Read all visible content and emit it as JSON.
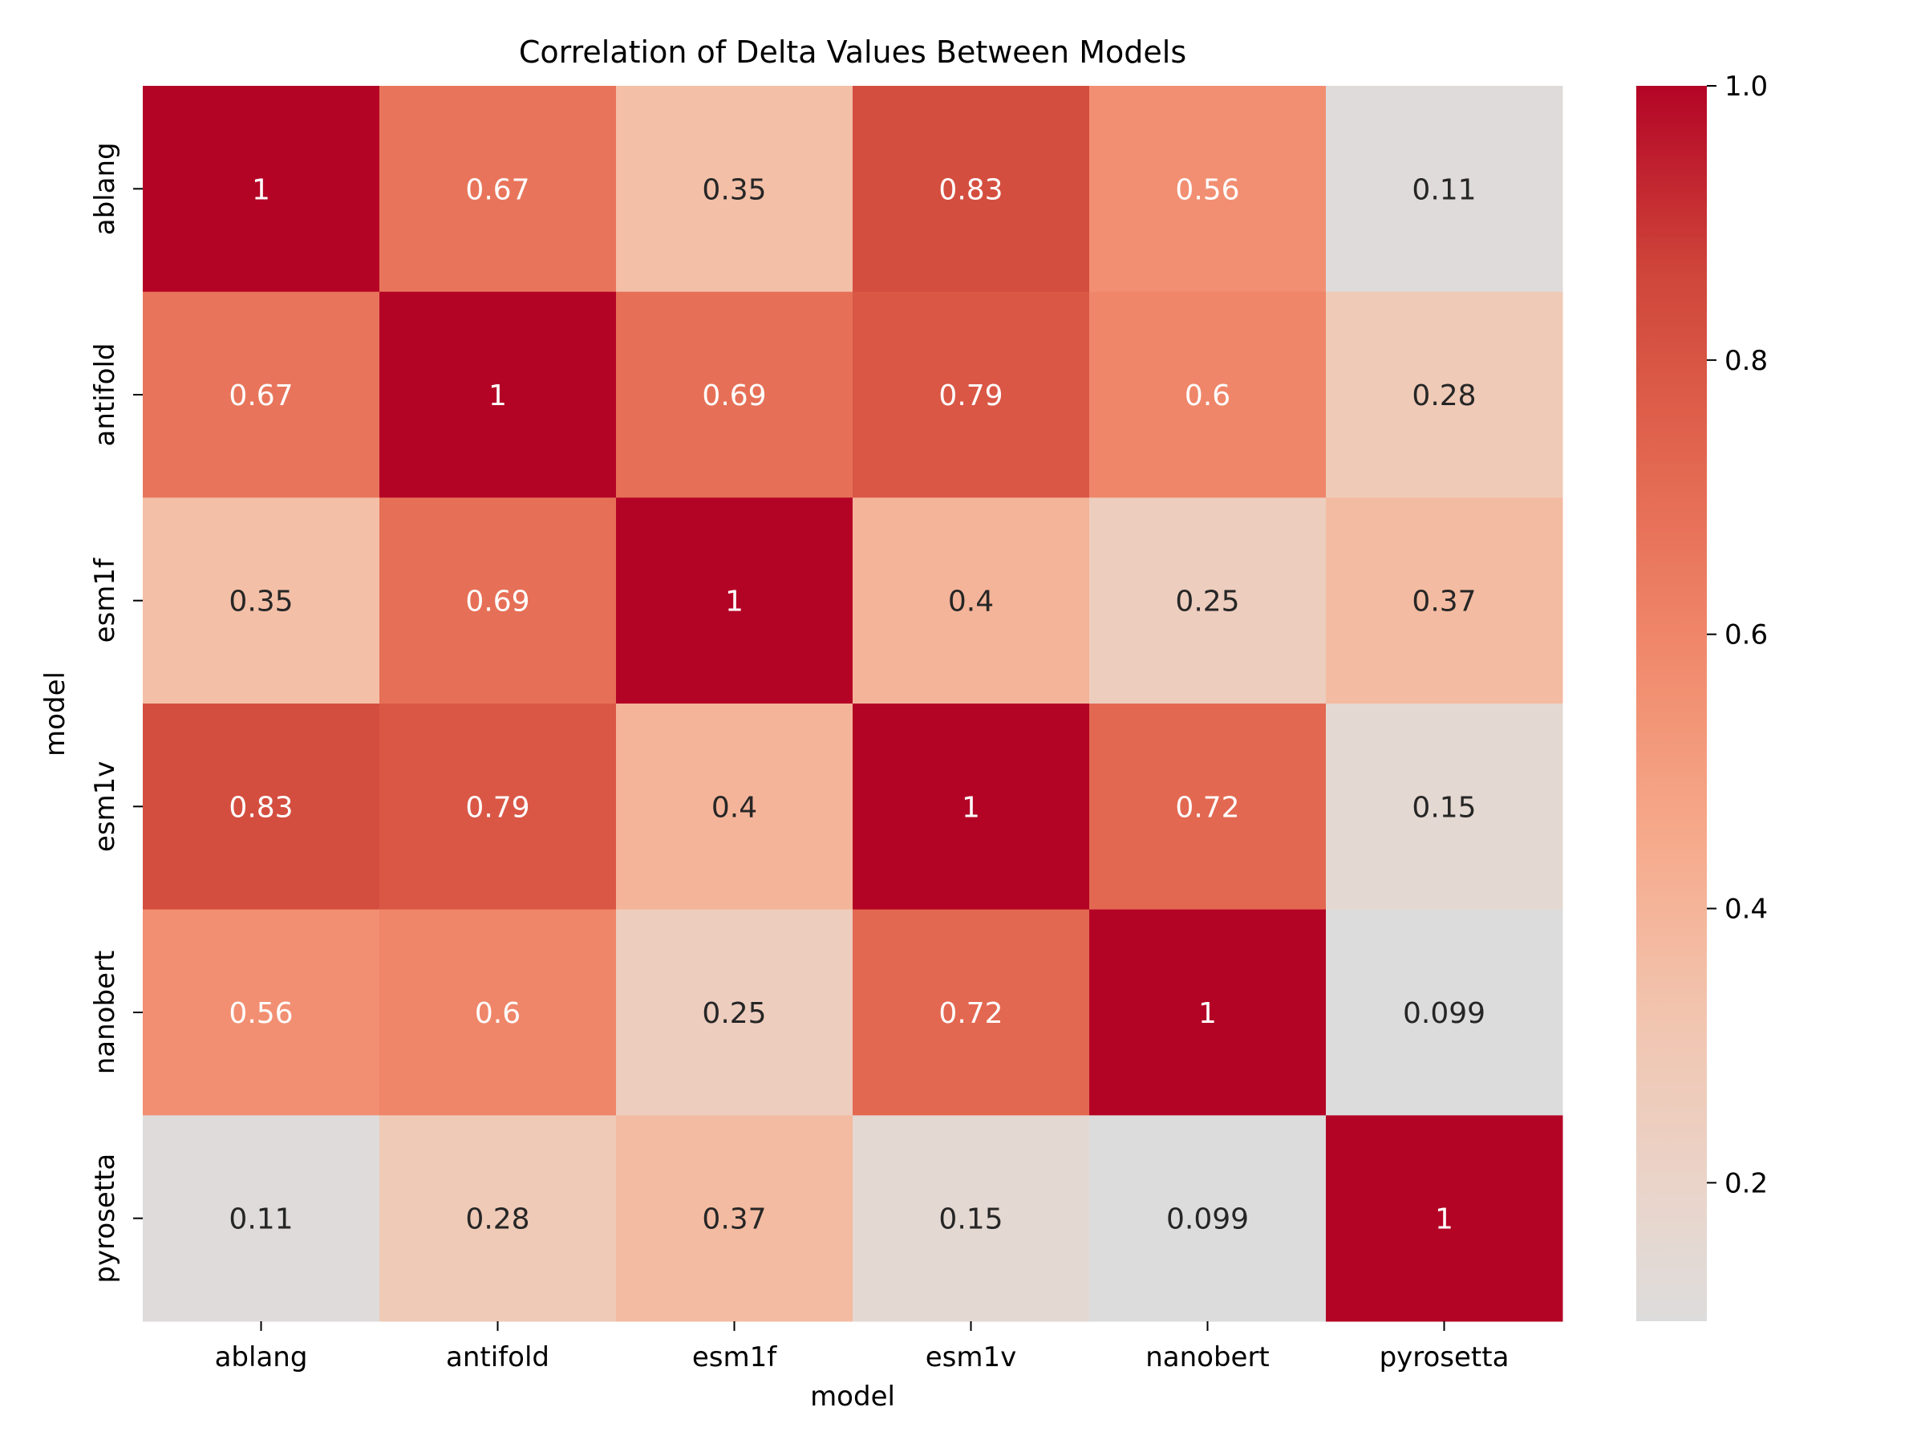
{
  "chart_data": {
    "type": "heatmap",
    "title": "Correlation of Delta Values Between Models",
    "xlabel": "model",
    "ylabel": "model",
    "x_categories": [
      "ablang",
      "antifold",
      "esm1f",
      "esm1v",
      "nanobert",
      "pyrosetta"
    ],
    "y_categories": [
      "ablang",
      "antifold",
      "esm1f",
      "esm1v",
      "nanobert",
      "pyrosetta"
    ],
    "values": [
      [
        1,
        0.67,
        0.35,
        0.83,
        0.56,
        0.11
      ],
      [
        0.67,
        1,
        0.69,
        0.79,
        0.6,
        0.28
      ],
      [
        0.35,
        0.69,
        1,
        0.4,
        0.25,
        0.37
      ],
      [
        0.83,
        0.79,
        0.4,
        1,
        0.72,
        0.15
      ],
      [
        0.56,
        0.6,
        0.25,
        0.72,
        1,
        0.099
      ],
      [
        0.11,
        0.28,
        0.37,
        0.15,
        0.099,
        1
      ]
    ],
    "colormap": "coolwarm (warm half)",
    "colorbar": {
      "range": [
        0.099,
        1.0
      ],
      "ticks": [
        0.2,
        0.4,
        0.6,
        0.8,
        1.0
      ],
      "tick_labels": [
        "0.2",
        "0.4",
        "0.6",
        "0.8",
        "1.0"
      ]
    },
    "annotations": true,
    "legend": "colorbar-right"
  }
}
